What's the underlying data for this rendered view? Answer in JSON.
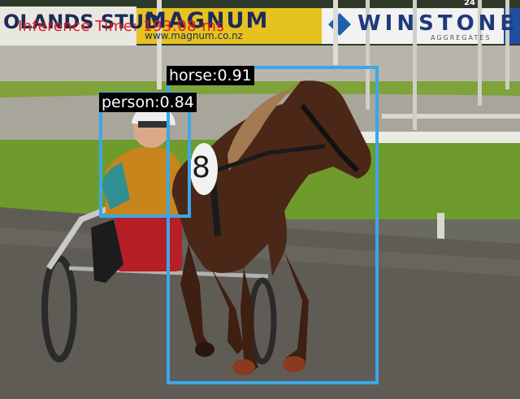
{
  "overlay": {
    "inference_text": "Inference Time: 193.08 ms",
    "detections": [
      {
        "label": "horse",
        "score": "0.91",
        "text": "horse:0.91"
      },
      {
        "label": "person",
        "score": "0.84",
        "text": "person:0.84"
      }
    ],
    "box_color": "#3aa7ea",
    "inference_color": "#e8181c"
  },
  "scene": {
    "billboard_left": "OLANDS STUD",
    "billboard_magnum": "MAGNUM",
    "billboard_magnum_url": "www.magnum.co.nz",
    "billboard_winstone": "WINSTONE",
    "billboard_winstone_sub": "AGGREGATES",
    "billboard_number": "24",
    "saddle_number": "8"
  }
}
